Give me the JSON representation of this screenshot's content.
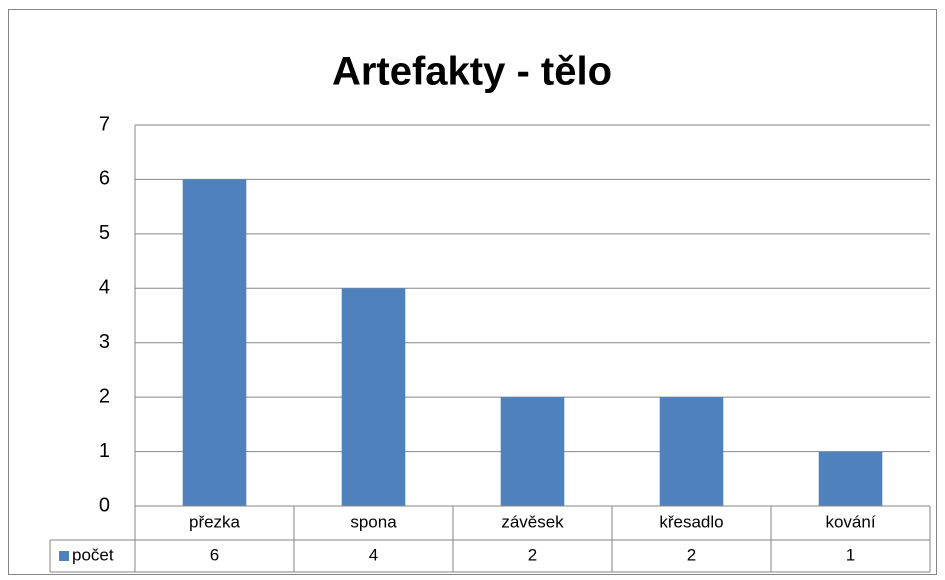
{
  "chart_data": {
    "type": "bar",
    "title": "Artefakty - tělo",
    "categories": [
      "přezka",
      "spona",
      "závěsek",
      "křesadlo",
      "kování"
    ],
    "series": [
      {
        "name": "počet",
        "color": "#4f81bd",
        "values": [
          6,
          4,
          2,
          2,
          1
        ]
      }
    ],
    "ylim": [
      0,
      7
    ],
    "yticks": [
      0,
      1,
      2,
      3,
      4,
      5,
      6,
      7
    ],
    "grid": true,
    "data_table": true
  }
}
